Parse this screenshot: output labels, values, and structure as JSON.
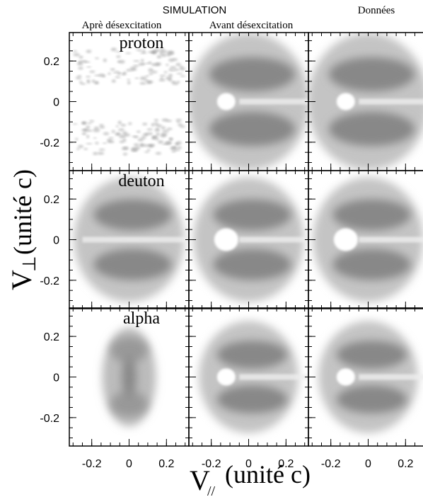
{
  "chart_data": {
    "type": "density",
    "title": "SIMULATION",
    "columns": [
      "Aprè désexcitation",
      "Avant désexcitation",
      "Données"
    ],
    "rows": [
      "proton",
      "deuton",
      "alpha"
    ],
    "xlabel": {
      "symbol": "V",
      "subscript": "//",
      "unit": "(unité c)"
    },
    "ylabel": {
      "symbol": "V",
      "subscript": "⊥",
      "unit": "(unité c)"
    },
    "xlim": [
      -0.32,
      0.32
    ],
    "ylim": [
      -0.34,
      0.34
    ],
    "xticks": [
      -0.2,
      0,
      0.2
    ],
    "yticks": [
      -0.2,
      0,
      0.2
    ]
  }
}
